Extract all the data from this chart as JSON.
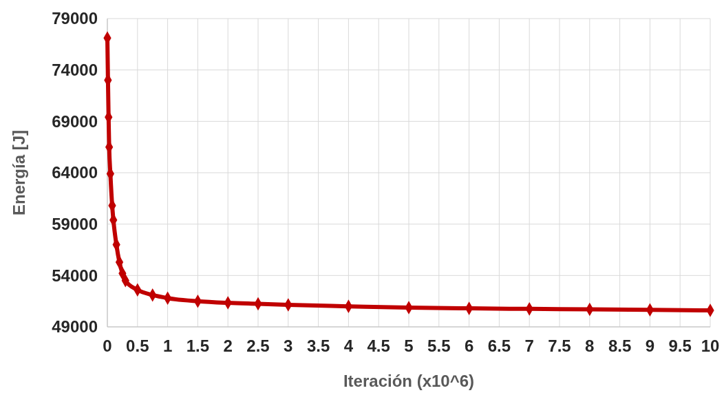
{
  "chart_data": {
    "type": "line",
    "xlabel": "Iteración (x10^6)",
    "ylabel": "Energía [J]",
    "x": [
      0,
      0.01,
      0.02,
      0.03,
      0.05,
      0.08,
      0.1,
      0.15,
      0.2,
      0.25,
      0.3,
      0.5,
      0.75,
      1,
      1.5,
      2,
      2.5,
      3,
      4,
      5,
      6,
      7,
      8,
      9,
      10
    ],
    "series": [
      {
        "color": "#c00000",
        "values": [
          77100,
          73000,
          69400,
          66500,
          63900,
          60800,
          59400,
          57000,
          55300,
          54200,
          53500,
          52600,
          52100,
          51800,
          51500,
          51340,
          51240,
          51140,
          51000,
          50870,
          50800,
          50750,
          50700,
          50650,
          50600
        ]
      }
    ],
    "xlim": [
      0,
      10
    ],
    "xticks": [
      0,
      0.5,
      1,
      1.5,
      2,
      2.5,
      3,
      3.5,
      4,
      4.5,
      5,
      5.5,
      6,
      6.5,
      7,
      7.5,
      8,
      8.5,
      9,
      9.5,
      10
    ],
    "ylim": [
      49000,
      79000
    ],
    "yticks": [
      49000,
      54000,
      59000,
      64000,
      69000,
      74000,
      79000
    ],
    "grid": true,
    "marker": "diamond",
    "line_style": "solid"
  }
}
